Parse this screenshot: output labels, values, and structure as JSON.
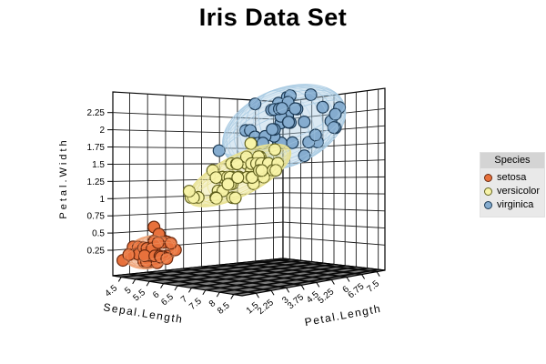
{
  "chart_data": {
    "type": "scatter",
    "projection": "3d",
    "title": "Iris Data Set",
    "legend_title": "Species",
    "axes": {
      "x": {
        "title": "Sepal.Length",
        "range": [
          4.2,
          8.8
        ],
        "tick_labels": [
          "4.5",
          "5",
          "5.5",
          "6",
          "6.5",
          "7",
          "7.5",
          "8",
          "8.5"
        ]
      },
      "y": {
        "title": "Petal.Length",
        "range": [
          0.8,
          7.9
        ],
        "tick_labels": [
          "1.5",
          "2.25",
          "3",
          "3.75",
          "4.5",
          "5.25",
          "6",
          "6.75",
          "7.5"
        ]
      },
      "z": {
        "title": "Petal.Width",
        "range": [
          -0.12,
          2.55
        ],
        "tick_labels": [
          "0.25",
          "0.5",
          "0.75",
          "1",
          "1.25",
          "1.5",
          "1.75",
          "2",
          "2.25"
        ]
      }
    },
    "colors": {
      "wall": "#ffffff",
      "wall_grid": "#1a1a1a",
      "floor": "#7b7b7b",
      "floor_grid": "#0a0a0a",
      "box_edge": "#000000"
    },
    "series": [
      {
        "name": "setosa",
        "color": "#E8713C",
        "outline": "#6B2A10",
        "mesh": "#EFA376",
        "points": [
          [
            5.1,
            1.4,
            0.2
          ],
          [
            4.9,
            1.4,
            0.2
          ],
          [
            4.7,
            1.3,
            0.2
          ],
          [
            4.6,
            1.5,
            0.2
          ],
          [
            5.0,
            1.4,
            0.2
          ],
          [
            5.4,
            1.7,
            0.4
          ],
          [
            4.6,
            1.4,
            0.3
          ],
          [
            5.0,
            1.5,
            0.2
          ],
          [
            4.4,
            1.4,
            0.2
          ],
          [
            4.9,
            1.5,
            0.1
          ],
          [
            5.4,
            1.5,
            0.2
          ],
          [
            4.8,
            1.6,
            0.2
          ],
          [
            4.8,
            1.4,
            0.1
          ],
          [
            4.3,
            1.1,
            0.1
          ],
          [
            5.8,
            1.2,
            0.2
          ],
          [
            5.7,
            1.5,
            0.4
          ],
          [
            5.4,
            1.3,
            0.4
          ],
          [
            5.1,
            1.4,
            0.3
          ],
          [
            5.7,
            1.7,
            0.3
          ],
          [
            5.1,
            1.5,
            0.3
          ],
          [
            5.4,
            1.7,
            0.2
          ],
          [
            5.1,
            1.5,
            0.4
          ],
          [
            4.6,
            1.0,
            0.2
          ],
          [
            5.1,
            1.7,
            0.5
          ],
          [
            4.8,
            1.9,
            0.2
          ],
          [
            5.0,
            1.6,
            0.2
          ],
          [
            5.0,
            1.6,
            0.4
          ],
          [
            5.2,
            1.5,
            0.2
          ],
          [
            5.2,
            1.4,
            0.2
          ],
          [
            4.7,
            1.6,
            0.2
          ],
          [
            4.8,
            1.6,
            0.2
          ],
          [
            5.4,
            1.5,
            0.4
          ],
          [
            5.2,
            1.5,
            0.1
          ],
          [
            5.5,
            1.4,
            0.2
          ],
          [
            4.9,
            1.5,
            0.2
          ],
          [
            5.0,
            1.2,
            0.2
          ],
          [
            5.5,
            1.3,
            0.2
          ],
          [
            4.9,
            1.4,
            0.1
          ],
          [
            4.4,
            1.3,
            0.2
          ],
          [
            5.1,
            1.5,
            0.2
          ],
          [
            5.0,
            1.3,
            0.3
          ],
          [
            4.5,
            1.3,
            0.3
          ],
          [
            4.4,
            1.3,
            0.2
          ],
          [
            5.0,
            1.6,
            0.6
          ],
          [
            5.1,
            1.9,
            0.4
          ],
          [
            4.8,
            1.4,
            0.3
          ],
          [
            5.1,
            1.6,
            0.2
          ],
          [
            4.6,
            1.4,
            0.2
          ],
          [
            5.3,
            1.5,
            0.2
          ],
          [
            5.0,
            1.4,
            0.2
          ]
        ]
      },
      {
        "name": "versicolor",
        "color": "#F7F3A8",
        "outline": "#62621F",
        "mesh": "#E9E292",
        "points": [
          [
            7.0,
            4.7,
            1.4
          ],
          [
            6.4,
            4.5,
            1.5
          ],
          [
            6.9,
            4.9,
            1.5
          ],
          [
            5.5,
            4.0,
            1.3
          ],
          [
            6.5,
            4.6,
            1.5
          ],
          [
            5.7,
            4.5,
            1.3
          ],
          [
            6.3,
            4.7,
            1.6
          ],
          [
            4.9,
            3.3,
            1.0
          ],
          [
            6.6,
            4.6,
            1.3
          ],
          [
            5.2,
            3.9,
            1.4
          ],
          [
            5.0,
            3.5,
            1.0
          ],
          [
            5.9,
            4.2,
            1.5
          ],
          [
            6.0,
            4.0,
            1.0
          ],
          [
            6.1,
            4.7,
            1.4
          ],
          [
            5.6,
            3.6,
            1.3
          ],
          [
            6.7,
            4.4,
            1.4
          ],
          [
            5.6,
            4.5,
            1.5
          ],
          [
            5.8,
            4.1,
            1.0
          ],
          [
            6.2,
            4.5,
            1.5
          ],
          [
            5.6,
            3.9,
            1.1
          ],
          [
            5.9,
            4.8,
            1.8
          ],
          [
            6.1,
            4.0,
            1.3
          ],
          [
            6.3,
            4.9,
            1.5
          ],
          [
            6.1,
            4.7,
            1.2
          ],
          [
            6.4,
            4.3,
            1.3
          ],
          [
            6.6,
            4.4,
            1.4
          ],
          [
            6.8,
            4.8,
            1.4
          ],
          [
            6.7,
            5.0,
            1.7
          ],
          [
            6.0,
            4.5,
            1.5
          ],
          [
            5.7,
            3.5,
            1.0
          ],
          [
            5.5,
            3.8,
            1.1
          ],
          [
            5.5,
            3.7,
            1.0
          ],
          [
            5.8,
            3.9,
            1.2
          ],
          [
            6.0,
            5.1,
            1.6
          ],
          [
            5.4,
            4.5,
            1.5
          ],
          [
            6.0,
            4.5,
            1.6
          ],
          [
            6.7,
            4.7,
            1.5
          ],
          [
            6.3,
            4.4,
            1.3
          ],
          [
            5.6,
            4.1,
            1.3
          ],
          [
            5.5,
            4.0,
            1.3
          ],
          [
            5.5,
            4.4,
            1.2
          ],
          [
            6.1,
            4.6,
            1.4
          ],
          [
            5.8,
            4.0,
            1.2
          ],
          [
            5.0,
            3.3,
            1.0
          ],
          [
            5.6,
            4.2,
            1.3
          ],
          [
            5.7,
            4.2,
            1.2
          ],
          [
            5.7,
            4.2,
            1.3
          ],
          [
            6.2,
            4.3,
            1.3
          ],
          [
            5.1,
            3.0,
            1.1
          ],
          [
            5.7,
            4.1,
            1.3
          ]
        ]
      },
      {
        "name": "virginica",
        "color": "#85ACCF",
        "outline": "#1C3A55",
        "mesh": "#A9CBE3",
        "points": [
          [
            6.3,
            6.0,
            2.5
          ],
          [
            5.8,
            5.1,
            1.9
          ],
          [
            7.1,
            5.9,
            2.1
          ],
          [
            6.3,
            5.6,
            1.8
          ],
          [
            6.5,
            5.8,
            2.2
          ],
          [
            7.6,
            6.6,
            2.1
          ],
          [
            4.9,
            4.5,
            1.7
          ],
          [
            7.3,
            6.3,
            1.8
          ],
          [
            6.7,
            5.8,
            1.8
          ],
          [
            7.2,
            6.1,
            2.5
          ],
          [
            6.5,
            5.1,
            2.0
          ],
          [
            6.4,
            5.3,
            1.9
          ],
          [
            6.8,
            5.5,
            2.1
          ],
          [
            5.7,
            5.0,
            2.0
          ],
          [
            5.8,
            5.1,
            2.4
          ],
          [
            6.4,
            5.3,
            2.3
          ],
          [
            6.5,
            5.5,
            1.8
          ],
          [
            7.7,
            6.7,
            2.2
          ],
          [
            7.7,
            6.9,
            2.3
          ],
          [
            6.0,
            5.0,
            1.5
          ],
          [
            6.9,
            5.7,
            2.3
          ],
          [
            5.6,
            4.9,
            2.0
          ],
          [
            7.7,
            6.7,
            2.0
          ],
          [
            6.3,
            4.9,
            1.8
          ],
          [
            6.7,
            5.7,
            2.1
          ],
          [
            7.2,
            6.0,
            1.8
          ],
          [
            6.2,
            4.8,
            1.8
          ],
          [
            6.1,
            4.9,
            1.8
          ],
          [
            6.4,
            5.6,
            2.1
          ],
          [
            7.2,
            5.8,
            1.6
          ],
          [
            7.4,
            6.1,
            1.9
          ],
          [
            7.9,
            6.4,
            2.0
          ],
          [
            6.4,
            5.6,
            2.2
          ],
          [
            6.3,
            5.1,
            1.5
          ],
          [
            6.1,
            5.6,
            1.4
          ],
          [
            7.7,
            6.1,
            2.3
          ],
          [
            6.3,
            5.6,
            2.4
          ],
          [
            6.4,
            5.5,
            1.8
          ],
          [
            6.0,
            4.8,
            1.8
          ],
          [
            6.9,
            5.4,
            2.1
          ],
          [
            6.7,
            5.6,
            2.4
          ],
          [
            6.9,
            5.1,
            2.3
          ],
          [
            5.8,
            5.1,
            1.9
          ],
          [
            6.8,
            5.9,
            2.3
          ],
          [
            6.7,
            5.7,
            2.5
          ],
          [
            6.7,
            5.2,
            2.3
          ],
          [
            6.3,
            5.0,
            1.9
          ],
          [
            6.5,
            5.2,
            2.0
          ],
          [
            6.2,
            5.4,
            2.3
          ],
          [
            5.9,
            5.1,
            1.8
          ]
        ]
      }
    ]
  }
}
